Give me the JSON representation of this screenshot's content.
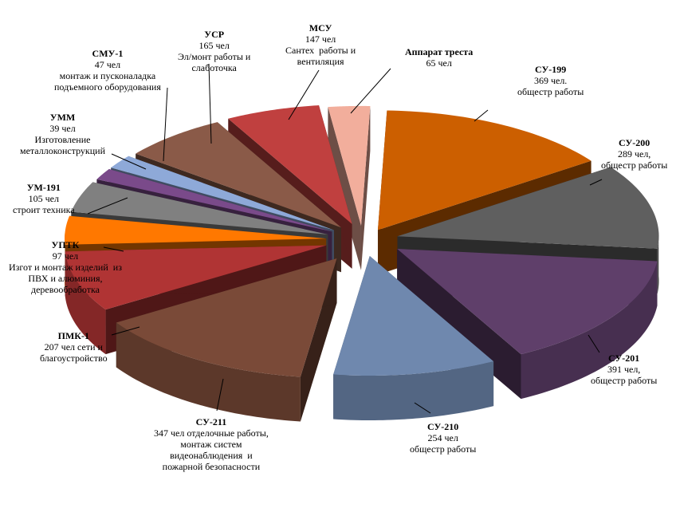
{
  "chart_data": {
    "type": "pie",
    "title": "",
    "unit": "чел",
    "slices": [
      {
        "name": "СУ-199",
        "value": 369,
        "detail": "369 чел.\nобщестр работы",
        "color": "#CC5F00"
      },
      {
        "name": "СУ-200",
        "value": 289,
        "detail": "289 чел,\nобщестр работы",
        "color": "#5F5F5F"
      },
      {
        "name": "СУ-201",
        "value": 391,
        "detail": "391 чел,\nобщестр работы",
        "color": "#5F3F6A"
      },
      {
        "name": "СУ-210",
        "value": 254,
        "detail": "254 чел\nобщестр работы",
        "color": "#6F88AE"
      },
      {
        "name": "СУ-211",
        "value": 347,
        "detail": "347 чел отделочные работы,\nмонтаж систем\nвидеонаблюдения  и\nпожарной безопасности",
        "color": "#7A4A38"
      },
      {
        "name": "ПМК-1",
        "value": 207,
        "detail": "207 чел сети и\nблагоустройство",
        "color": "#B03434"
      },
      {
        "name": "УПТК",
        "value": 97,
        "detail": "97 чел\nИзгот и монтаж изделий  из\nПВХ и алюминия,\nдеревообработка",
        "color": "#FF7800"
      },
      {
        "name": "УМ-191",
        "value": 105,
        "detail": "105 чел\nстроит техника",
        "color": "#808080"
      },
      {
        "name": "УММ",
        "value": 39,
        "detail": "39 чел\nИзготовление\nметаллоконструкций",
        "color": "#7A4A8A"
      },
      {
        "name": "СМУ-1",
        "value": 47,
        "detail": "47 чел\nмонтаж и пусконаладка\nподъемного оборудования",
        "color": "#8EA9D8"
      },
      {
        "name": "УСР",
        "value": 165,
        "detail": "165 чел\nЭл/монт работы и\nслаботочка",
        "color": "#8A5A48"
      },
      {
        "name": "МСУ",
        "value": 147,
        "detail": "147 чел\nСантех  работы и\nвентиляция",
        "color": "#C0403F"
      },
      {
        "name": "Аппарат   треста",
        "value": 65,
        "detail": "65 чел",
        "color": "#F2AE9C"
      }
    ],
    "legend": "none"
  }
}
